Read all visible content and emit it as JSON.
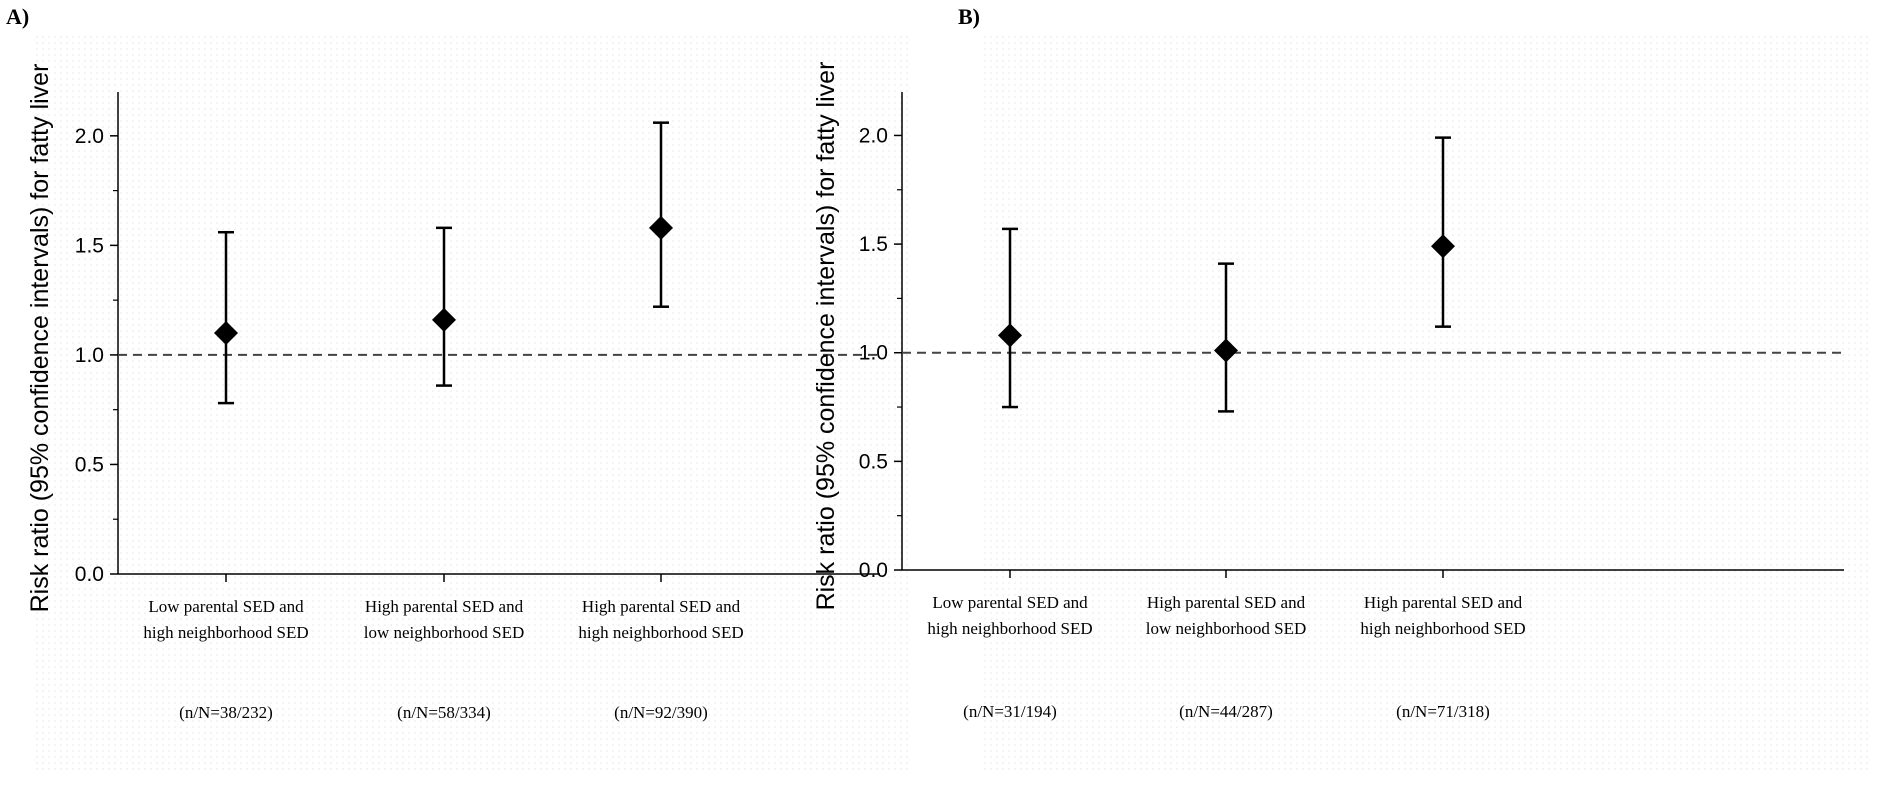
{
  "chart_data": [
    {
      "panel_label": "A)",
      "type": "scatter",
      "ylabel": "Risk ratio (95% confidence intervals) for fatty liver",
      "ylim": [
        0,
        2.2
      ],
      "yticks": [
        "0.0",
        "0.5",
        "1.0",
        "1.5",
        "2.0"
      ],
      "reference_line": 1.0,
      "grid": false,
      "categories": [
        {
          "line1": "Low parental SED and",
          "line2": "high neighborhood SED",
          "count": "(n/N=38/232)",
          "estimate": 1.1,
          "lower": 0.78,
          "upper": 1.56
        },
        {
          "line1": "High parental SED and",
          "line2": "low neighborhood SED",
          "count": "(n/N=58/334)",
          "estimate": 1.16,
          "lower": 0.86,
          "upper": 1.58
        },
        {
          "line1": "High parental SED and",
          "line2": "high neighborhood SED",
          "count": "(n/N=92/390)",
          "estimate": 1.58,
          "lower": 1.22,
          "upper": 2.06
        }
      ]
    },
    {
      "panel_label": "B)",
      "type": "scatter",
      "ylabel": "Risk ratio (95% confidence intervals) for fatty liver",
      "ylim": [
        0,
        2.2
      ],
      "yticks": [
        "0.0",
        "0.5",
        "1.0",
        "1.5",
        "2.0"
      ],
      "reference_line": 1.0,
      "grid": false,
      "categories": [
        {
          "line1": "Low parental SED and",
          "line2": "high neighborhood SED",
          "count": "(n/N=31/194)",
          "estimate": 1.08,
          "lower": 0.75,
          "upper": 1.57
        },
        {
          "line1": "High parental SED and",
          "line2": "low neighborhood SED",
          "count": "(n/N=44/287)",
          "estimate": 1.01,
          "lower": 0.73,
          "upper": 1.41
        },
        {
          "line1": "High parental SED and",
          "line2": "high neighborhood SED",
          "count": "(n/N=71/318)",
          "estimate": 1.49,
          "lower": 1.12,
          "upper": 1.99
        }
      ]
    }
  ]
}
